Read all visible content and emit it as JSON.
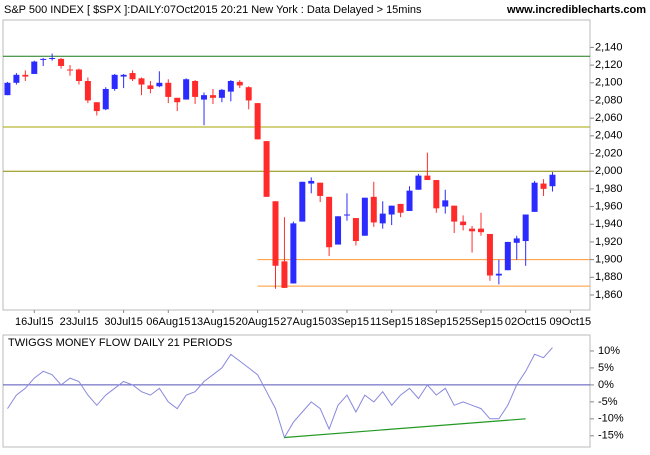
{
  "chart_data": [
    {
      "type": "candlestick",
      "title": "S&P 500 INDEX [ $SPX ]:DAILY:07Oct2015 20:21 New York : Data Delayed > 15mins",
      "source": "www.incrediblecharts.com",
      "open": [
        2086,
        2100,
        2109,
        2110,
        2126,
        2127,
        2127,
        2115,
        2115,
        2102,
        2078,
        2070,
        2093,
        2107,
        2111,
        2105,
        2097,
        2096,
        2100,
        2083,
        2081,
        2102,
        2081,
        2086,
        2083,
        2090,
        2101,
        2095,
        2077,
        2034,
        1966,
        1898,
        1873,
        1943,
        1986,
        1987,
        1971,
        1917,
        1950,
        1947,
        1927,
        1971,
        1941,
        1951,
        1963,
        1955,
        1979,
        1995,
        1990,
        1960,
        1961,
        1943,
        1935,
        1935,
        1929,
        1882,
        1888,
        1919,
        1921,
        1954,
        1986,
        1983
      ],
      "high": [
        2101,
        2111,
        2114,
        2125,
        2128,
        2133,
        2128,
        2120,
        2116,
        2106,
        2078,
        2095,
        2110,
        2110,
        2114,
        2106,
        2102,
        2113,
        2104,
        2083,
        2105,
        2103,
        2089,
        2093,
        2093,
        2103,
        2103,
        2096,
        2077,
        2034,
        1966,
        1948,
        1943,
        1988,
        1993,
        1987,
        1971,
        1949,
        1975,
        1947,
        1970,
        1988,
        1966,
        1961,
        1963,
        1983,
        1997,
        2021,
        1990,
        1979,
        1961,
        1950,
        1938,
        1953,
        1929,
        1900,
        1920,
        1927,
        1951,
        1989,
        1991,
        1999
      ],
      "low": [
        2086,
        2098,
        2102,
        2110,
        2119,
        2125,
        2116,
        2108,
        2098,
        2077,
        2063,
        2069,
        2091,
        2094,
        2102,
        2086,
        2088,
        2095,
        2077,
        2068,
        2081,
        2076,
        2052,
        2076,
        2078,
        2079,
        2094,
        2070,
        2036,
        1971,
        1867,
        1868,
        1873,
        1943,
        1975,
        1965,
        1904,
        1917,
        1944,
        1916,
        1927,
        1937,
        1935,
        1939,
        1948,
        1955,
        1979,
        1990,
        1953,
        1952,
        1930,
        1933,
        1908,
        1927,
        1876,
        1872,
        1888,
        1900,
        1893,
        1954,
        1972,
        1977
      ],
      "close": [
        2100,
        2109,
        2107,
        2124,
        2127,
        2128,
        2119,
        2114,
        2102,
        2080,
        2068,
        2093,
        2109,
        2109,
        2104,
        2098,
        2093,
        2100,
        2084,
        2078,
        2104,
        2084,
        2086,
        2083,
        2092,
        2102,
        2097,
        2080,
        2036,
        1971,
        1893,
        1868,
        1941,
        1988,
        1989,
        1972,
        1914,
        1949,
        1951,
        1921,
        1970,
        1942,
        1952,
        1961,
        1953,
        1978,
        1995,
        1990,
        1958,
        1967,
        1943,
        1939,
        1932,
        1931,
        1882,
        1884,
        1920,
        1924,
        1951,
        1987,
        1980,
        1996
      ],
      "up_color": "#2b2bff",
      "down_color": "#ff2b2b",
      "xlim": [
        -0.5,
        65.2
      ],
      "xticks": [
        {
          "value": 3,
          "label": "16Jul15"
        },
        {
          "value": 8,
          "label": "23Jul15"
        },
        {
          "value": 13,
          "label": "30Jul15"
        },
        {
          "value": 18,
          "label": "06Aug15"
        },
        {
          "value": 23,
          "label": "13Aug15"
        },
        {
          "value": 28,
          "label": "20Aug15"
        },
        {
          "value": 33,
          "label": "27Aug15"
        },
        {
          "value": 38,
          "label": "03Sep15"
        },
        {
          "value": 43,
          "label": "11Sep15"
        },
        {
          "value": 48,
          "label": "18Sep15"
        },
        {
          "value": 53,
          "label": "25Sep15"
        },
        {
          "value": 58,
          "label": "02Oct15"
        },
        {
          "value": 63,
          "label": "09Oct15"
        }
      ],
      "ylim": [
        1843,
        2171
      ],
      "yticks": [
        {
          "value": 1860,
          "label": "1,860"
        },
        {
          "value": 1880,
          "label": "1,880"
        },
        {
          "value": 1900,
          "label": "1,900"
        },
        {
          "value": 1920,
          "label": "1,920"
        },
        {
          "value": 1940,
          "label": "1,940"
        },
        {
          "value": 1960,
          "label": "1,960"
        },
        {
          "value": 1980,
          "label": "1,980"
        },
        {
          "value": 2000,
          "label": "2,000"
        },
        {
          "value": 2020,
          "label": "2,020"
        },
        {
          "value": 2040,
          "label": "2,040"
        },
        {
          "value": 2060,
          "label": "2,060"
        },
        {
          "value": 2080,
          "label": "2,080"
        },
        {
          "value": 2100,
          "label": "2,100"
        },
        {
          "value": 2120,
          "label": "2,120"
        },
        {
          "value": 2140,
          "label": "2,140"
        }
      ],
      "hlines": [
        {
          "value": 2130,
          "color": "#1a7a1a"
        },
        {
          "value": 2050,
          "color": "#a6a600"
        },
        {
          "value": 2000,
          "color": "#8a8a00"
        },
        {
          "value": 1900,
          "color": "#ff9933",
          "from": 28
        },
        {
          "value": 1870,
          "color": "#ff9933",
          "from": 28
        }
      ]
    },
    {
      "type": "line",
      "title": "TWIGGS MONEY FLOW DAILY 21 PERIODS",
      "values": [
        -7,
        -3,
        -1,
        2,
        4,
        3,
        0,
        2,
        1,
        -3,
        -6,
        -3,
        -1,
        1,
        0,
        -2,
        -3,
        -1,
        -5,
        -7,
        -3,
        -2,
        1,
        3,
        5,
        9,
        7,
        5,
        3,
        -2,
        -7,
        -15.5,
        -11,
        -8,
        -5,
        -7,
        -13,
        -6,
        -3,
        -8,
        -3,
        -5,
        -2,
        -6,
        -3,
        -1,
        -4,
        0,
        -3,
        -1,
        -6,
        -5,
        -6,
        -7,
        -10,
        -10,
        -6,
        0,
        4,
        9,
        8,
        11
      ],
      "color": "#8888dd",
      "zero_color": "#5555bb",
      "xlim": [
        -0.5,
        65.2
      ],
      "ylim": [
        -18.3,
        14.7
      ],
      "yticks": [
        {
          "value": 10,
          "label": "10%"
        },
        {
          "value": 5,
          "label": "5%"
        },
        {
          "value": 0,
          "label": "0%"
        },
        {
          "value": -5,
          "label": "-5%"
        },
        {
          "value": -10,
          "label": "-10%"
        },
        {
          "value": -15,
          "label": "-15%"
        }
      ],
      "trendline": {
        "x": [
          31,
          58
        ],
        "values": [
          -15.5,
          -10
        ],
        "color": "#229922"
      }
    }
  ]
}
